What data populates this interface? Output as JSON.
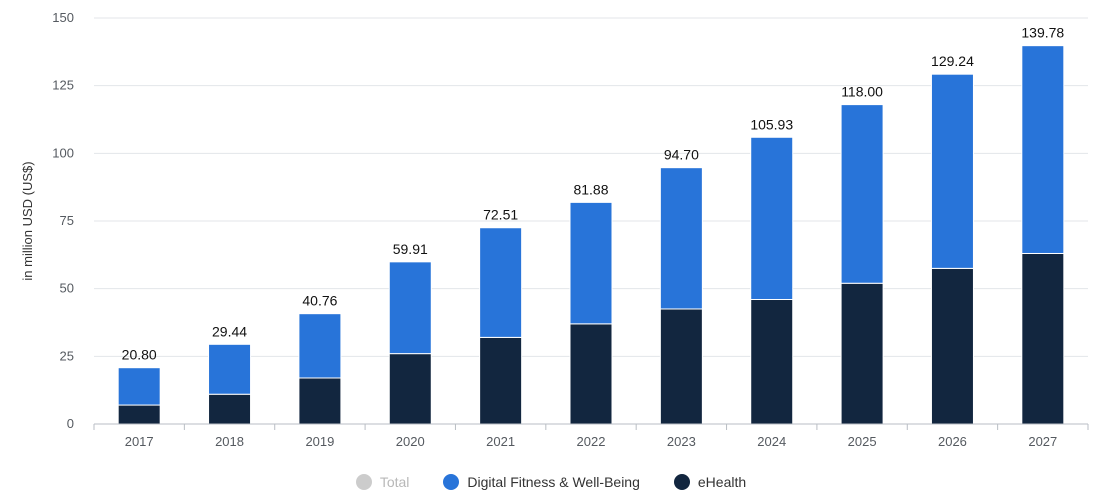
{
  "chart_data": {
    "type": "bar",
    "stacked": true,
    "ylabel": "in million USD (US$)",
    "ylim": [
      0,
      150
    ],
    "yticks": [
      "0",
      "25",
      "50",
      "75",
      "100",
      "125",
      "150"
    ],
    "categories": [
      "2017",
      "2018",
      "2019",
      "2020",
      "2021",
      "2022",
      "2023",
      "2024",
      "2025",
      "2026",
      "2027"
    ],
    "series": [
      {
        "name": "eHealth",
        "color": "#12263f",
        "values": [
          7.0,
          11.0,
          17.0,
          26.0,
          32.0,
          37.0,
          42.5,
          46.0,
          52.0,
          57.5,
          63.0
        ]
      },
      {
        "name": "Digital Fitness & Well-Being",
        "color": "#2874d9",
        "values": [
          13.8,
          18.44,
          23.76,
          33.91,
          40.51,
          44.88,
          52.2,
          59.93,
          66.0,
          71.74,
          76.78
        ]
      }
    ],
    "totals": [
      "20.80",
      "29.44",
      "40.76",
      "59.91",
      "72.51",
      "81.88",
      "94.70",
      "105.93",
      "118.00",
      "129.24",
      "139.78"
    ],
    "legend": [
      {
        "label": "Total",
        "color": "#cccccc",
        "text_color": "#b8b8b8",
        "inactive": true
      },
      {
        "label": "Digital Fitness & Well-Being",
        "color": "#2874d9",
        "text_color": "#333333",
        "inactive": false
      },
      {
        "label": "eHealth",
        "color": "#12263f",
        "text_color": "#333333",
        "inactive": false
      }
    ],
    "legend_position": "bottom-center",
    "grid": true
  }
}
